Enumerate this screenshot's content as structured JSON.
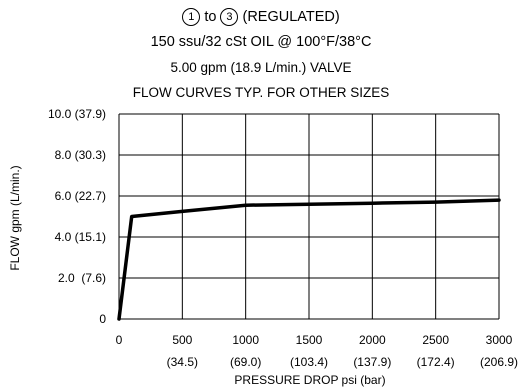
{
  "title": {
    "port_from": "1",
    "to_word": "to",
    "port_to": "3",
    "mode": "(REGULATED)",
    "line2": "150 ssu/32 cSt OIL @ 100°F/38°C",
    "line3": "5.00 gpm (18.9 L/min.) VALVE",
    "line4": "FLOW CURVES TYP. FOR OTHER SIZES"
  },
  "chart_data": {
    "type": "line",
    "xlabel": "PRESSURE DROP psi (bar)",
    "ylabel": "FLOW gpm (L/min.)",
    "xlim": [
      0,
      3000
    ],
    "ylim": [
      0,
      10
    ],
    "grid": true,
    "x_ticks": [
      {
        "value": 0,
        "label": "0",
        "sub": ""
      },
      {
        "value": 500,
        "label": "500",
        "sub": "(34.5)"
      },
      {
        "value": 1000,
        "label": "1000",
        "sub": "(69.0)"
      },
      {
        "value": 1500,
        "label": "1500",
        "sub": "(103.4)"
      },
      {
        "value": 2000,
        "label": "2000",
        "sub": "(137.9)"
      },
      {
        "value": 2500,
        "label": "2500",
        "sub": "(172.4)"
      },
      {
        "value": 3000,
        "label": "3000",
        "sub": "(206.9)"
      }
    ],
    "y_ticks": [
      {
        "value": 0,
        "label": "0"
      },
      {
        "value": 2,
        "label": "2.0  (7.6)"
      },
      {
        "value": 4,
        "label": "4.0 (15.1)"
      },
      {
        "value": 6,
        "label": "6.0 (22.7)"
      },
      {
        "value": 8,
        "label": "8.0 (30.3)"
      },
      {
        "value": 10,
        "label": "10.0 (37.9)"
      }
    ],
    "series": [
      {
        "x": [
          0,
          100,
          500,
          1000,
          1500,
          2000,
          2500,
          3000
        ],
        "y": [
          0,
          5.0,
          5.25,
          5.55,
          5.6,
          5.65,
          5.7,
          5.8
        ]
      }
    ]
  }
}
